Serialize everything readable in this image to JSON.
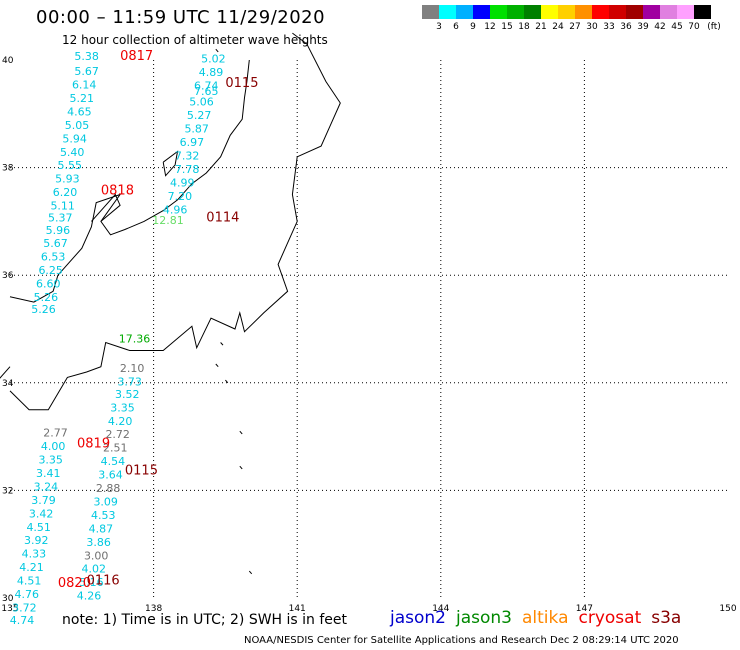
{
  "title": "00:00 – 11:59 UTC 11/29/2020",
  "subtitle": "12 hour collection of altimeter wave heights",
  "colorbar": {
    "unit": "(ft)",
    "colors": [
      "#808080",
      "#00ffff",
      "#00b0ff",
      "#0000ff",
      "#00e000",
      "#00b000",
      "#008000",
      "#ffff00",
      "#ffd000",
      "#ff9000",
      "#ff0000",
      "#d00000",
      "#a00000",
      "#a000a0",
      "#e080e0",
      "#ffa0ff",
      "#000000"
    ],
    "labels": [
      "3",
      "6",
      "9",
      "12",
      "15",
      "18",
      "21",
      "24",
      "27",
      "30",
      "33",
      "36",
      "39",
      "42",
      "45",
      "70"
    ]
  },
  "axes": {
    "lon_labels": [
      "135",
      "138",
      "141",
      "144",
      "147",
      "150"
    ],
    "lat_labels": [
      "30",
      "32",
      "34",
      "36",
      "38",
      "40"
    ]
  },
  "colors": {
    "jason2": "#0000cc",
    "jason3": "#008800",
    "altika": "#ff8800",
    "cryosat": "#ee0000",
    "s3a": "#880000",
    "gray": "#707070",
    "cyan": "#00c8e0",
    "lightgreen": "#66dd66",
    "green": "#00aa00"
  },
  "times": [
    {
      "text": "0817",
      "lon": 137.3,
      "lat": 40.0,
      "sat": "cryosat"
    },
    {
      "text": "0115",
      "lon": 139.5,
      "lat": 39.5,
      "sat": "s3a"
    },
    {
      "text": "0818",
      "lon": 136.9,
      "lat": 37.5,
      "sat": "cryosat"
    },
    {
      "text": "0114",
      "lon": 139.1,
      "lat": 37.0,
      "sat": "s3a"
    },
    {
      "text": "0819",
      "lon": 136.4,
      "lat": 32.8,
      "sat": "cryosat"
    },
    {
      "text": "0115",
      "lon": 137.4,
      "lat": 32.3,
      "sat": "s3a"
    },
    {
      "text": "0820",
      "lon": 136.0,
      "lat": 30.2,
      "sat": "cryosat"
    },
    {
      "text": "0116",
      "lon": 136.6,
      "lat": 30.25,
      "sat": "s3a"
    }
  ],
  "values": [
    {
      "text": "5.38",
      "lon": 136.6,
      "lat": 40.0,
      "c": "cyan"
    },
    {
      "text": "5.67",
      "lon": 136.6,
      "lat": 39.72,
      "c": "cyan"
    },
    {
      "text": "6.14",
      "lon": 136.55,
      "lat": 39.47,
      "c": "cyan"
    },
    {
      "text": "5.21",
      "lon": 136.5,
      "lat": 39.22,
      "c": "cyan"
    },
    {
      "text": "4.65",
      "lon": 136.45,
      "lat": 38.97,
      "c": "cyan"
    },
    {
      "text": "5.05",
      "lon": 136.4,
      "lat": 38.72,
      "c": "cyan"
    },
    {
      "text": "5.94",
      "lon": 136.35,
      "lat": 38.47,
      "c": "cyan"
    },
    {
      "text": "5.40",
      "lon": 136.3,
      "lat": 38.22,
      "c": "cyan"
    },
    {
      "text": "5.55",
      "lon": 136.25,
      "lat": 37.97,
      "c": "cyan"
    },
    {
      "text": "5.93",
      "lon": 136.2,
      "lat": 37.72,
      "c": "cyan"
    },
    {
      "text": "6.20",
      "lon": 136.15,
      "lat": 37.47,
      "c": "cyan"
    },
    {
      "text": "5.11",
      "lon": 136.1,
      "lat": 37.22,
      "c": "cyan"
    },
    {
      "text": "5.37",
      "lon": 136.05,
      "lat": 37.0,
      "c": "cyan"
    },
    {
      "text": "5.96",
      "lon": 136.0,
      "lat": 36.77,
      "c": "cyan"
    },
    {
      "text": "5.67",
      "lon": 135.95,
      "lat": 36.52,
      "c": "cyan"
    },
    {
      "text": "6.53",
      "lon": 135.9,
      "lat": 36.27,
      "c": "cyan"
    },
    {
      "text": "6.25",
      "lon": 135.85,
      "lat": 36.02,
      "c": "cyan"
    },
    {
      "text": "6.60",
      "lon": 135.8,
      "lat": 35.77,
      "c": "cyan"
    },
    {
      "text": "5.26",
      "lon": 135.75,
      "lat": 35.52,
      "c": "cyan"
    },
    {
      "text": "5.26",
      "lon": 135.7,
      "lat": 35.3,
      "c": "cyan"
    },
    {
      "text": "5.02",
      "lon": 139.25,
      "lat": 39.95,
      "c": "cyan"
    },
    {
      "text": "4.89",
      "lon": 139.2,
      "lat": 39.7,
      "c": "cyan"
    },
    {
      "text": "6.74",
      "lon": 139.1,
      "lat": 39.45,
      "c": "cyan"
    },
    {
      "text": "7.65",
      "lon": 139.1,
      "lat": 39.35,
      "c": "cyan"
    },
    {
      "text": "5.06",
      "lon": 139.0,
      "lat": 39.15,
      "c": "cyan"
    },
    {
      "text": "5.27",
      "lon": 138.95,
      "lat": 38.9,
      "c": "cyan"
    },
    {
      "text": "5.87",
      "lon": 138.9,
      "lat": 38.65,
      "c": "cyan"
    },
    {
      "text": "6.97",
      "lon": 138.8,
      "lat": 38.4,
      "c": "cyan"
    },
    {
      "text": "7.32",
      "lon": 138.7,
      "lat": 38.15,
      "c": "cyan"
    },
    {
      "text": "7.78",
      "lon": 138.7,
      "lat": 37.9,
      "c": "cyan"
    },
    {
      "text": "4.99",
      "lon": 138.6,
      "lat": 37.65,
      "c": "cyan"
    },
    {
      "text": "7.20",
      "lon": 138.55,
      "lat": 37.4,
      "c": "cyan"
    },
    {
      "text": "4.96",
      "lon": 138.45,
      "lat": 37.15,
      "c": "cyan"
    },
    {
      "text": "12.81",
      "lon": 138.3,
      "lat": 36.95,
      "c": "lightgreen"
    },
    {
      "text": "17.36",
      "lon": 137.6,
      "lat": 34.75,
      "c": "green"
    },
    {
      "text": "2.10",
      "lon": 137.55,
      "lat": 34.2,
      "c": "gray"
    },
    {
      "text": "3.73",
      "lon": 137.5,
      "lat": 33.95,
      "c": "cyan"
    },
    {
      "text": "3.52",
      "lon": 137.45,
      "lat": 33.72,
      "c": "cyan"
    },
    {
      "text": "3.35",
      "lon": 137.35,
      "lat": 33.47,
      "c": "cyan"
    },
    {
      "text": "4.20",
      "lon": 137.3,
      "lat": 33.22,
      "c": "cyan"
    },
    {
      "text": "2.77",
      "lon": 135.95,
      "lat": 33.0,
      "c": "gray"
    },
    {
      "text": "2.72",
      "lon": 137.25,
      "lat": 32.97,
      "c": "gray"
    },
    {
      "text": "4.00",
      "lon": 135.9,
      "lat": 32.75,
      "c": "cyan"
    },
    {
      "text": "2.51",
      "lon": 137.2,
      "lat": 32.72,
      "c": "gray"
    },
    {
      "text": "3.35",
      "lon": 135.85,
      "lat": 32.5,
      "c": "cyan"
    },
    {
      "text": "4.54",
      "lon": 137.15,
      "lat": 32.47,
      "c": "cyan"
    },
    {
      "text": "3.41",
      "lon": 135.8,
      "lat": 32.25,
      "c": "cyan"
    },
    {
      "text": "3.64",
      "lon": 137.1,
      "lat": 32.22,
      "c": "cyan"
    },
    {
      "text": "3.24",
      "lon": 135.75,
      "lat": 32.0,
      "c": "cyan"
    },
    {
      "text": "2.88",
      "lon": 137.05,
      "lat": 31.97,
      "c": "gray"
    },
    {
      "text": "3.79",
      "lon": 135.7,
      "lat": 31.75,
      "c": "cyan"
    },
    {
      "text": "3.09",
      "lon": 137.0,
      "lat": 31.72,
      "c": "cyan"
    },
    {
      "text": "3.42",
      "lon": 135.65,
      "lat": 31.5,
      "c": "cyan"
    },
    {
      "text": "4.53",
      "lon": 136.95,
      "lat": 31.47,
      "c": "cyan"
    },
    {
      "text": "4.51",
      "lon": 135.6,
      "lat": 31.25,
      "c": "cyan"
    },
    {
      "text": "4.87",
      "lon": 136.9,
      "lat": 31.22,
      "c": "cyan"
    },
    {
      "text": "3.92",
      "lon": 135.55,
      "lat": 31.0,
      "c": "cyan"
    },
    {
      "text": "3.86",
      "lon": 136.85,
      "lat": 30.97,
      "c": "cyan"
    },
    {
      "text": "4.33",
      "lon": 135.5,
      "lat": 30.75,
      "c": "cyan"
    },
    {
      "text": "3.00",
      "lon": 136.8,
      "lat": 30.72,
      "c": "gray"
    },
    {
      "text": "4.21",
      "lon": 135.45,
      "lat": 30.5,
      "c": "cyan"
    },
    {
      "text": "4.02",
      "lon": 136.75,
      "lat": 30.47,
      "c": "cyan"
    },
    {
      "text": "4.51",
      "lon": 135.4,
      "lat": 30.25,
      "c": "cyan"
    },
    {
      "text": "5.16",
      "lon": 136.7,
      "lat": 30.22,
      "c": "cyan"
    },
    {
      "text": "4.76",
      "lon": 135.35,
      "lat": 30.0,
      "c": "cyan"
    },
    {
      "text": "4.26",
      "lon": 136.65,
      "lat": 29.97,
      "c": "cyan"
    },
    {
      "text": "3.72",
      "lon": 135.3,
      "lat": 29.75,
      "c": "cyan"
    },
    {
      "text": "4.74",
      "lon": 135.25,
      "lat": 29.52,
      "c": "cyan"
    }
  ],
  "note": "note: 1) Time is in UTC; 2) SWH is in feet",
  "satellites": [
    {
      "label": "jason2",
      "c": "jason2"
    },
    {
      "label": "jason3",
      "c": "jason3"
    },
    {
      "label": "altika",
      "c": "altika"
    },
    {
      "label": "cryosat",
      "c": "cryosat"
    },
    {
      "label": "s3a",
      "c": "s3a"
    }
  ],
  "credit": "NOAA/NESDIS Center for Satellite Applications and Research    Dec  2 08:29:14 UTC 2020"
}
